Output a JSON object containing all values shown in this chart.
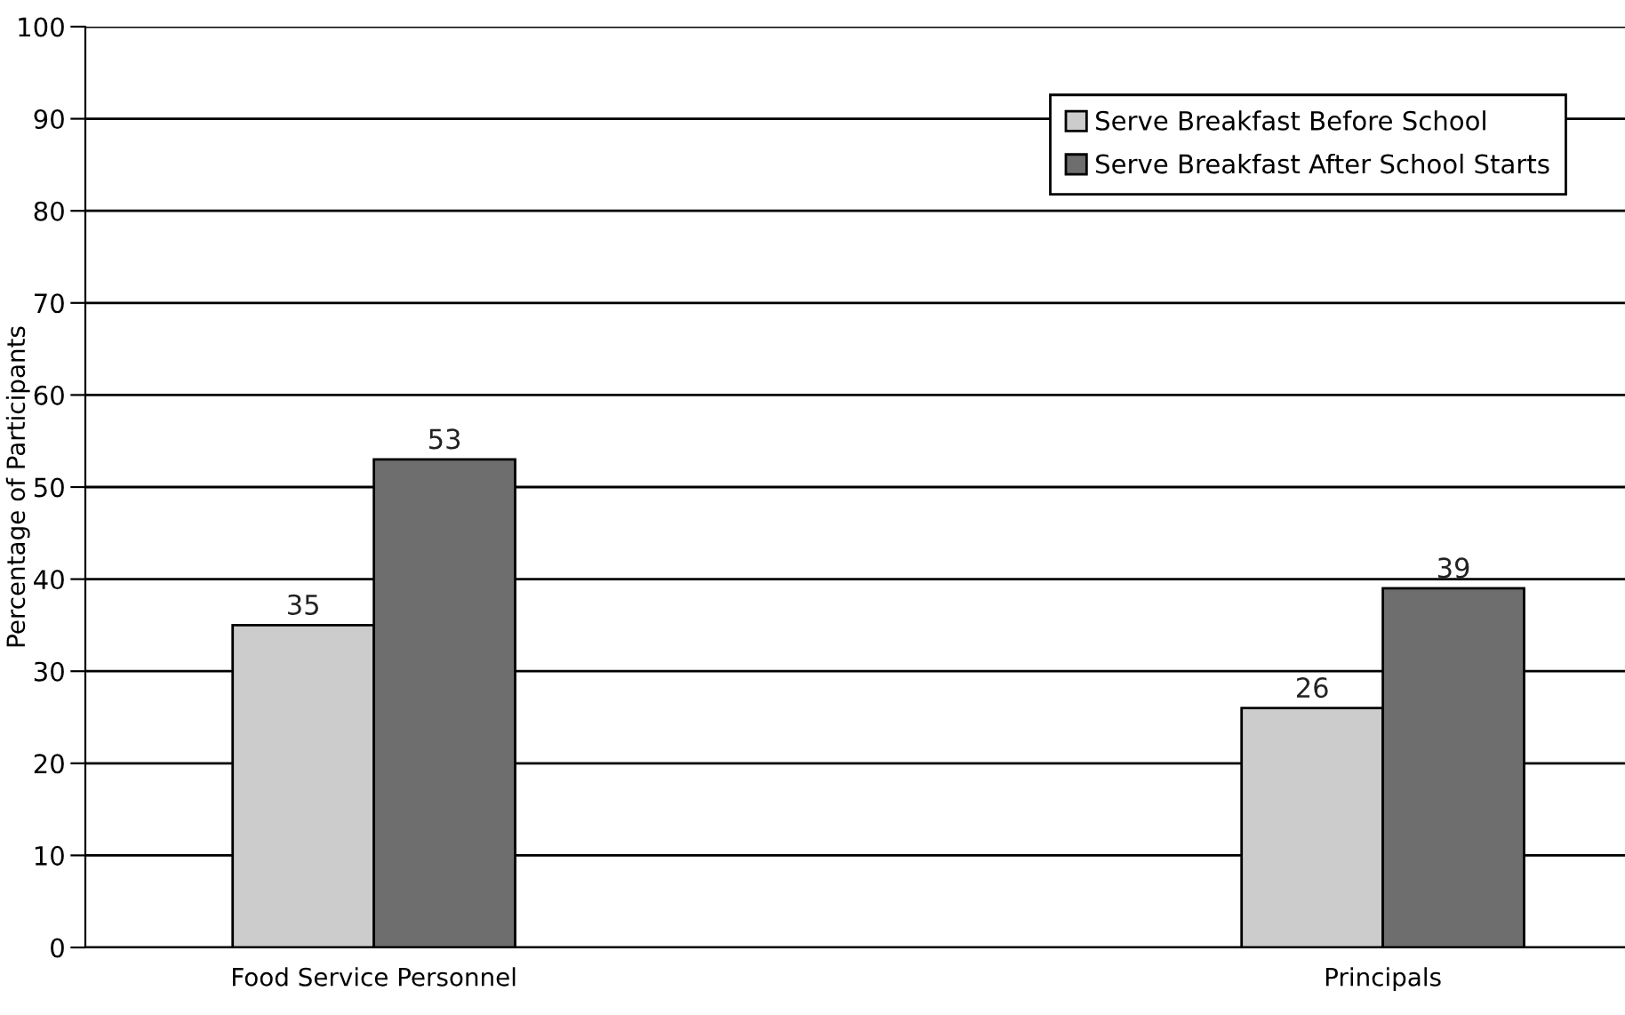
{
  "chart_data": {
    "type": "bar",
    "ylabel": "Percentage of Participants",
    "categories": [
      "Food Service Personnel",
      "Principals"
    ],
    "series": [
      {
        "name": "Serve Breakfast Before School",
        "color": "#cccccc",
        "values": [
          35,
          26
        ]
      },
      {
        "name": "Serve Breakfast After School Starts",
        "color": "#6e6e6e",
        "values": [
          53,
          39
        ]
      }
    ],
    "ylim": [
      0,
      100
    ],
    "yticks": [
      0,
      10,
      20,
      30,
      40,
      50,
      60,
      70,
      80,
      90,
      100
    ],
    "grid": "y",
    "legend": "top right",
    "data_labels": true
  }
}
